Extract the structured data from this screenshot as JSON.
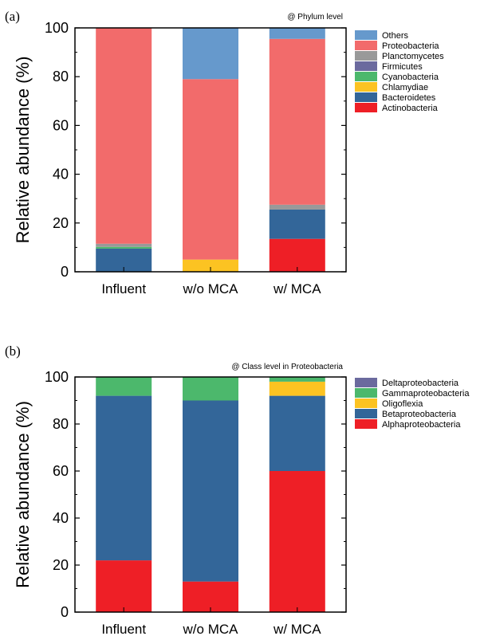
{
  "chart_data": [
    {
      "type": "bar",
      "stacked": true,
      "panel_label": "(a)",
      "annotation": "@ Phylum level",
      "ylabel": "Relative abundance (%)",
      "ylim": [
        0,
        100
      ],
      "yticks": [
        0,
        20,
        40,
        60,
        80,
        100
      ],
      "categories": [
        "Influent",
        "w/o MCA",
        "w/ MCA"
      ],
      "legend_position": "right",
      "series": [
        {
          "name": "Actinobacteria",
          "color": "#ee1f26",
          "values": [
            0,
            0,
            13.5
          ]
        },
        {
          "name": "Bacteroidetes",
          "color": "#336699",
          "values": [
            9.5,
            0,
            12
          ]
        },
        {
          "name": "Chlamydiae",
          "color": "#fcc322",
          "values": [
            0,
            5,
            0
          ]
        },
        {
          "name": "Cyanobacteria",
          "color": "#4cb86c",
          "values": [
            0.7,
            0,
            0
          ]
        },
        {
          "name": "Firmicutes",
          "color": "#6b6a9e",
          "values": [
            0,
            0,
            0
          ]
        },
        {
          "name": "Planctomycetes",
          "color": "#999999",
          "values": [
            1.3,
            0,
            2
          ]
        },
        {
          "name": "Proteobacteria",
          "color": "#f26b6b",
          "values": [
            88.5,
            74,
            68
          ]
        },
        {
          "name": "Others",
          "color": "#6699cc",
          "values": [
            0,
            21,
            4.5
          ]
        }
      ]
    },
    {
      "type": "bar",
      "stacked": true,
      "panel_label": "(b)",
      "annotation": "@ Class level in Proteobacteria",
      "ylabel": "Relative abundance (%)",
      "ylim": [
        0,
        100
      ],
      "yticks": [
        0,
        20,
        40,
        60,
        80,
        100
      ],
      "categories": [
        "Influent",
        "w/o MCA",
        "w/ MCA"
      ],
      "legend_position": "right",
      "series": [
        {
          "name": "Alphaproteobacteria",
          "color": "#ee1f26",
          "values": [
            22,
            13,
            60
          ]
        },
        {
          "name": "Betaproteobacteria",
          "color": "#336699",
          "values": [
            70,
            77,
            32
          ]
        },
        {
          "name": "Oligoflexia",
          "color": "#fcc322",
          "values": [
            0,
            0,
            6
          ]
        },
        {
          "name": "Gammaproteobacteria",
          "color": "#4cb86c",
          "values": [
            8,
            10,
            2
          ]
        },
        {
          "name": "Deltaproteobacteria",
          "color": "#6b6a9e",
          "values": [
            0,
            0,
            0
          ]
        }
      ]
    }
  ]
}
